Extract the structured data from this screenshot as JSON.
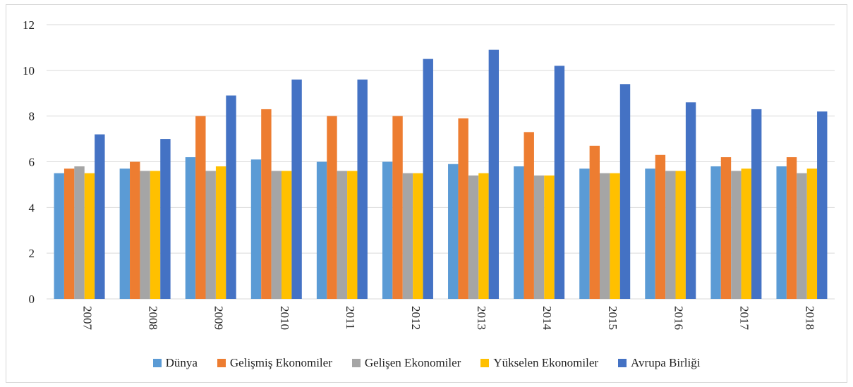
{
  "chart_data": {
    "type": "bar",
    "title": "",
    "xlabel": "",
    "ylabel": "",
    "ylim": [
      0,
      12
    ],
    "yticks": [
      0,
      2,
      4,
      6,
      8,
      10,
      12
    ],
    "grid": true,
    "legend_position": "bottom",
    "categories": [
      "2007",
      "2008",
      "2009",
      "2010",
      "2011",
      "2012",
      "2013",
      "2014",
      "2015",
      "2016",
      "2017",
      "2018"
    ],
    "series": [
      {
        "name": "Dünya",
        "color": "#5b9bd5",
        "values": [
          5.5,
          5.7,
          6.2,
          6.1,
          6.0,
          6.0,
          5.9,
          5.8,
          5.7,
          5.7,
          5.8,
          5.8
        ]
      },
      {
        "name": "Gelişmiş Ekonomiler",
        "color": "#ed7d31",
        "values": [
          5.7,
          6.0,
          8.0,
          8.3,
          8.0,
          8.0,
          7.9,
          7.3,
          6.7,
          6.3,
          6.2,
          6.2
        ]
      },
      {
        "name": "Gelişen Ekonomiler",
        "color": "#a5a5a5",
        "values": [
          5.8,
          5.6,
          5.6,
          5.6,
          5.6,
          5.5,
          5.4,
          5.4,
          5.5,
          5.6,
          5.6,
          5.5
        ]
      },
      {
        "name": "Yükselen Ekonomiler",
        "color": "#ffc000",
        "values": [
          5.5,
          5.6,
          5.8,
          5.6,
          5.6,
          5.5,
          5.5,
          5.4,
          5.5,
          5.6,
          5.7,
          5.7
        ]
      },
      {
        "name": "Avrupa Birliği",
        "color": "#4472c4",
        "values": [
          7.2,
          7.0,
          8.9,
          9.6,
          9.6,
          10.5,
          10.9,
          10.2,
          9.4,
          8.6,
          8.3,
          8.2
        ]
      }
    ]
  }
}
